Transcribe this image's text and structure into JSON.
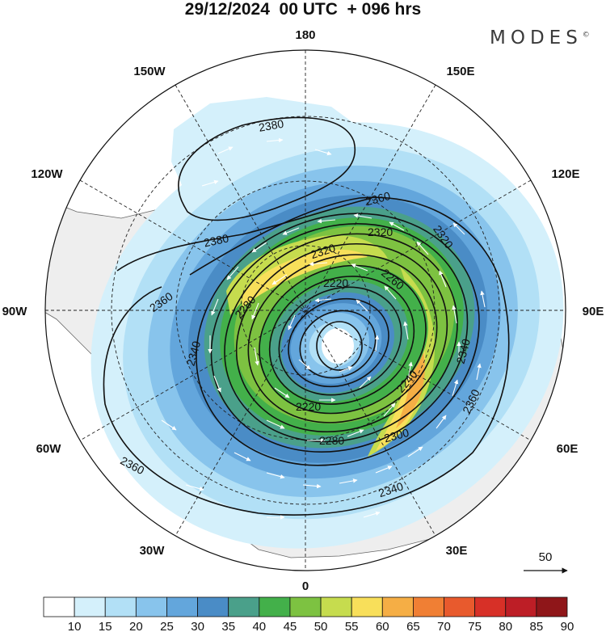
{
  "title": "29/12/2024  00 UTC  + 096 hrs",
  "brand": "MODES",
  "brand_mark": "©",
  "longitude_labels": [
    "180",
    "150E",
    "120E",
    "90E",
    "60E",
    "30E",
    "0",
    "30W",
    "60W",
    "90W",
    "120W",
    "150W"
  ],
  "contour_labels": [
    "2380",
    "2380",
    "2360",
    "2360",
    "2360",
    "2360",
    "2340",
    "2340",
    "2340",
    "2320",
    "2320",
    "2320",
    "2300",
    "2280",
    "2280",
    "2260",
    "2240",
    "2220",
    "2220"
  ],
  "wind_reference": {
    "label": "50"
  },
  "colorbar": {
    "levels": [
      "10",
      "15",
      "20",
      "25",
      "30",
      "35",
      "40",
      "45",
      "50",
      "55",
      "60",
      "65",
      "70",
      "75",
      "80",
      "85",
      "90"
    ],
    "colors": [
      "#ffffff",
      "#d4f0fb",
      "#b2e0f6",
      "#88c4ec",
      "#63a6dc",
      "#4a8cc6",
      "#4aa08a",
      "#43b04a",
      "#7dc241",
      "#c6dc4e",
      "#f8df5a",
      "#f5ae45",
      "#f07f34",
      "#e85a2d",
      "#d73027",
      "#bd1e26",
      "#8f1619"
    ]
  }
}
